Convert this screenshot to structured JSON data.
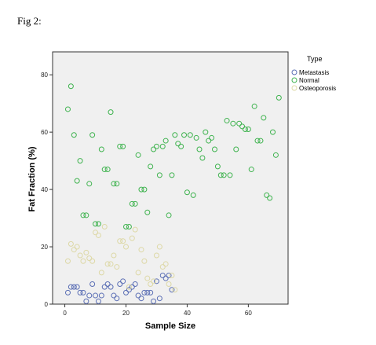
{
  "figure_label": "Fig 2:",
  "chart_data": {
    "type": "scatter",
    "xlabel": "Sample Size",
    "ylabel": "Fat Fraction (%)",
    "xlim": [
      -4,
      73
    ],
    "ylim": [
      0,
      88
    ],
    "xticks": [
      0,
      20,
      40,
      60
    ],
    "yticks": [
      0,
      20,
      40,
      60,
      80
    ],
    "grid": false,
    "legend": {
      "title": "Type",
      "placement": "right-outside-top"
    },
    "series": [
      {
        "name": "Metastasis",
        "color": "#5b6fb5",
        "points": [
          [
            1,
            4
          ],
          [
            2,
            6
          ],
          [
            3,
            6
          ],
          [
            4,
            6
          ],
          [
            5,
            4
          ],
          [
            6,
            4
          ],
          [
            7,
            1
          ],
          [
            8,
            3
          ],
          [
            9,
            7
          ],
          [
            10,
            3
          ],
          [
            11,
            1
          ],
          [
            12,
            3
          ],
          [
            13,
            6
          ],
          [
            14,
            7
          ],
          [
            15,
            6
          ],
          [
            16,
            3
          ],
          [
            17,
            2
          ],
          [
            18,
            7
          ],
          [
            19,
            8
          ],
          [
            20,
            4
          ],
          [
            21,
            5
          ],
          [
            22,
            6
          ],
          [
            23,
            7
          ],
          [
            24,
            3
          ],
          [
            25,
            2
          ],
          [
            26,
            4
          ],
          [
            27,
            4
          ],
          [
            28,
            4
          ],
          [
            29,
            1
          ],
          [
            30,
            8
          ],
          [
            31,
            2
          ],
          [
            32,
            10
          ],
          [
            33,
            9
          ],
          [
            34,
            10
          ],
          [
            35,
            5
          ]
        ]
      },
      {
        "name": "Normal",
        "color": "#3fb34f",
        "points": [
          [
            1,
            68
          ],
          [
            2,
            76
          ],
          [
            3,
            59
          ],
          [
            4,
            43
          ],
          [
            5,
            50
          ],
          [
            6,
            31
          ],
          [
            7,
            31
          ],
          [
            8,
            42
          ],
          [
            9,
            59
          ],
          [
            10,
            28
          ],
          [
            11,
            28
          ],
          [
            12,
            54
          ],
          [
            13,
            47
          ],
          [
            14,
            47
          ],
          [
            15,
            67
          ],
          [
            16,
            42
          ],
          [
            17,
            42
          ],
          [
            18,
            55
          ],
          [
            19,
            55
          ],
          [
            20,
            27
          ],
          [
            21,
            27
          ],
          [
            22,
            35
          ],
          [
            23,
            35
          ],
          [
            24,
            52
          ],
          [
            25,
            40
          ],
          [
            26,
            40
          ],
          [
            27,
            32
          ],
          [
            28,
            48
          ],
          [
            29,
            54
          ],
          [
            30,
            55
          ],
          [
            31,
            45
          ],
          [
            32,
            55
          ],
          [
            33,
            57
          ],
          [
            34,
            31
          ],
          [
            35,
            45
          ],
          [
            36,
            59
          ],
          [
            37,
            56
          ],
          [
            38,
            55
          ],
          [
            39,
            59
          ],
          [
            40,
            39
          ],
          [
            41,
            59
          ],
          [
            42,
            38
          ],
          [
            43,
            58
          ],
          [
            44,
            54
          ],
          [
            45,
            51
          ],
          [
            46,
            60
          ],
          [
            47,
            57
          ],
          [
            48,
            58
          ],
          [
            49,
            54
          ],
          [
            50,
            48
          ],
          [
            51,
            45
          ],
          [
            52,
            45
          ],
          [
            53,
            64
          ],
          [
            54,
            45
          ],
          [
            55,
            63
          ],
          [
            56,
            54
          ],
          [
            57,
            63
          ],
          [
            58,
            62
          ],
          [
            59,
            61
          ],
          [
            60,
            61
          ],
          [
            61,
            47
          ],
          [
            62,
            69
          ],
          [
            63,
            57
          ],
          [
            64,
            57
          ],
          [
            65,
            65
          ],
          [
            66,
            38
          ],
          [
            67,
            37
          ],
          [
            68,
            60
          ],
          [
            69,
            52
          ],
          [
            70,
            72
          ]
        ]
      },
      {
        "name": "Osteoporosis",
        "color": "#ddd8a6",
        "points": [
          [
            1,
            15
          ],
          [
            2,
            21
          ],
          [
            3,
            19
          ],
          [
            4,
            20
          ],
          [
            5,
            17
          ],
          [
            6,
            15
          ],
          [
            7,
            18
          ],
          [
            8,
            16
          ],
          [
            9,
            15
          ],
          [
            10,
            25
          ],
          [
            11,
            24
          ],
          [
            12,
            11
          ],
          [
            13,
            27
          ],
          [
            14,
            14
          ],
          [
            15,
            14
          ],
          [
            16,
            17
          ],
          [
            17,
            13
          ],
          [
            18,
            22
          ],
          [
            19,
            22
          ],
          [
            20,
            20
          ],
          [
            21,
            6
          ],
          [
            22,
            23
          ],
          [
            23,
            26
          ],
          [
            24,
            11
          ],
          [
            25,
            19
          ],
          [
            26,
            15
          ],
          [
            27,
            9
          ],
          [
            28,
            7
          ],
          [
            29,
            8
          ],
          [
            30,
            17
          ],
          [
            31,
            20
          ],
          [
            32,
            13
          ],
          [
            33,
            14
          ],
          [
            34,
            7
          ],
          [
            35,
            10
          ],
          [
            36,
            5
          ]
        ]
      }
    ]
  }
}
